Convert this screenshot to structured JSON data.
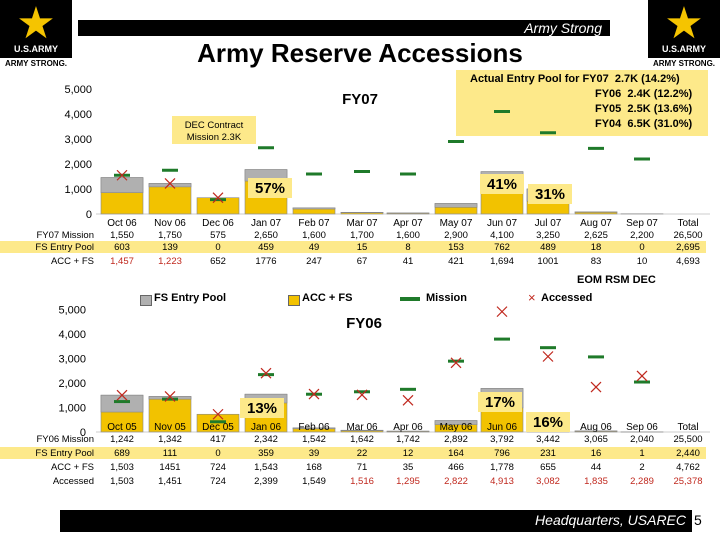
{
  "header": {
    "tagline": "Army Strong",
    "title": "Army Reserve Accessions",
    "logo_left": {
      "line1": "U.S.ARMY",
      "line2": "ARMY STRONG."
    },
    "logo_right": {
      "line1": "U.S.ARMY",
      "line2": "ARMY STRONG."
    }
  },
  "actual_pool": {
    "lines": [
      "Actual Entry Pool for FY07  2.7K (14.2%)",
      "FY06  2.4K (12.2%)",
      "FY05  2.5K (13.6%)",
      "FY04  6.5K (31.0%)"
    ]
  },
  "colors": {
    "fs_pool": "#b0b0b0",
    "acc_fs": "#f2c200",
    "mission": "#1f7a2a",
    "accessed": "#c0281e",
    "mission_fy06": "#1f7a2a"
  },
  "middle": {
    "eom_label": "EOM RSM DEC",
    "legend": [
      "FS Entry Pool",
      "ACC + FS",
      "Mission",
      "Accessed"
    ]
  },
  "footer": {
    "org": "Headquarters, USAREC",
    "page": "5"
  },
  "chart_data": [
    {
      "type": "bar",
      "title": "FY07",
      "note": "DEC Contract Mission 2.3K",
      "ylim": [
        0,
        5000
      ],
      "yticks": [
        "0",
        "1,000",
        "2,000",
        "3,000",
        "4,000",
        "5,000"
      ],
      "categories": [
        "Oct 06",
        "Nov 06",
        "Dec 06",
        "Jan 07",
        "Feb 07",
        "Mar 07",
        "Apr 07",
        "May 07",
        "Jun 07",
        "Jul 07",
        "Aug 07",
        "Sep 07"
      ],
      "total_label": "Total",
      "percent_labels": [
        "57%",
        "41%",
        "31%"
      ],
      "series": [
        {
          "name": "FS Entry Pool",
          "values": [
            603,
            139,
            0,
            459,
            49,
            15,
            8,
            153,
            762,
            489,
            18,
            0
          ]
        },
        {
          "name": "ACC + FS",
          "values": [
            1457,
            1223,
            652,
            1776,
            247,
            67,
            41,
            421,
            1694,
            1001,
            83,
            10
          ]
        },
        {
          "name": "Mission",
          "values": [
            1550,
            1750,
            575,
            2650,
            1600,
            1700,
            1600,
            2900,
            4100,
            3250,
            2625,
            2200
          ]
        }
      ],
      "accessed_markers": [
        1550,
        1223,
        652
      ],
      "table": {
        "rows": [
          {
            "label": "FY07 Mission",
            "values": [
              "1,550",
              "1,750",
              "575",
              "2,650",
              "1,600",
              "1,700",
              "1,600",
              "2,900",
              "4,100",
              "3,250",
              "2,625",
              "2,200"
            ],
            "total": "26,500"
          },
          {
            "label": "FS Entry Pool",
            "values": [
              "603",
              "139",
              "0",
              "459",
              "49",
              "15",
              "8",
              "153",
              "762",
              "489",
              "18",
              "0"
            ],
            "total": "2,695"
          },
          {
            "label": "ACC + FS",
            "values": [
              "1,457",
              "1,223",
              "652",
              "1776",
              "247",
              "67",
              "41",
              "421",
              "1,694",
              "1001",
              "83",
              "10"
            ],
            "total": "4,693"
          }
        ]
      }
    },
    {
      "type": "bar",
      "title": "FY06",
      "ylim": [
        0,
        5000
      ],
      "yticks": [
        "0",
        "1,000",
        "2,000",
        "3,000",
        "4,000",
        "5,000"
      ],
      "categories": [
        "Oct 05",
        "Nov 05",
        "Dec 05",
        "Jan 06",
        "Feb 06",
        "Mar 06",
        "Apr 06",
        "May 06",
        "Jun 06",
        "Jul 06",
        "Aug 06",
        "Sep 06"
      ],
      "total_label": "Total",
      "percent_labels": [
        "13%",
        "17%",
        "16%"
      ],
      "series": [
        {
          "name": "Mission",
          "values": [
            1242,
            1342,
            417,
            2342,
            1542,
            1642,
            1742,
            2892,
            3792,
            3442,
            3065,
            2040
          ]
        },
        {
          "name": "FS Entry Pool",
          "values": [
            689,
            111,
            0,
            359,
            39,
            22,
            12,
            164,
            796,
            231,
            16,
            1
          ]
        },
        {
          "name": "ACC + FS",
          "values": [
            1503,
            1451,
            724,
            1543,
            168,
            71,
            35,
            466,
            1778,
            655,
            44,
            2
          ]
        },
        {
          "name": "Accessed",
          "values": [
            1503,
            1451,
            724,
            2399,
            1549,
            1516,
            1295,
            2822,
            4913,
            3082,
            1835,
            2289
          ]
        }
      ],
      "table": {
        "rows": [
          {
            "label": "FY06 Mission",
            "values": [
              "1,242",
              "1,342",
              "417",
              "2,342",
              "1,542",
              "1,642",
              "1,742",
              "2,892",
              "3,792",
              "3,442",
              "3,065",
              "2,040"
            ],
            "total": "25,500"
          },
          {
            "label": "FS Entry Pool",
            "values": [
              "689",
              "111",
              "0",
              "359",
              "39",
              "22",
              "12",
              "164",
              "796",
              "231",
              "16",
              "1"
            ],
            "total": "2,440"
          },
          {
            "label": "ACC + FS",
            "values": [
              "1,503",
              "1451",
              "724",
              "1,543",
              "168",
              "71",
              "35",
              "466",
              "1,778",
              "655",
              "44",
              "2"
            ],
            "total": "4,762"
          },
          {
            "label": "Accessed",
            "values": [
              "1,503",
              "1,451",
              "724",
              "2,399",
              "1,549",
              "1,516",
              "1,295",
              "2,822",
              "4,913",
              "3,082",
              "1,835",
              "2,289"
            ],
            "total": "25,378"
          }
        ]
      }
    }
  ]
}
